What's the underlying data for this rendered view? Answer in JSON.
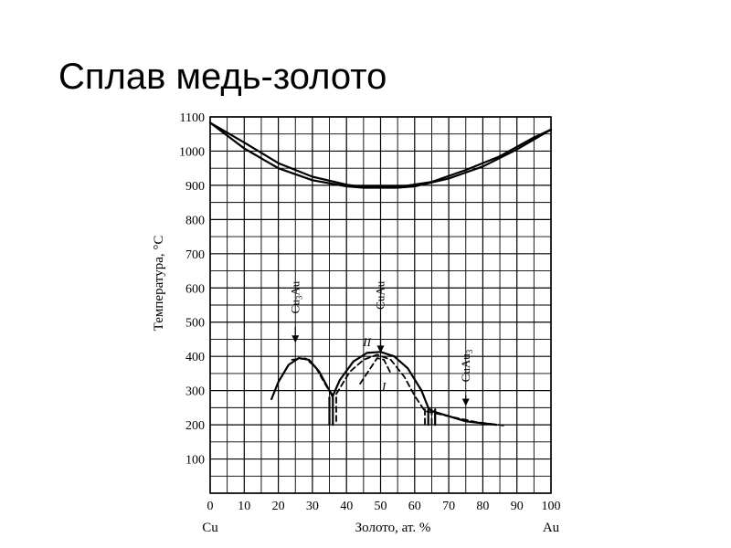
{
  "slide": {
    "title": "Сплав медь-золото"
  },
  "chart_data": {
    "type": "line",
    "title": "Сплав медь-золото",
    "xlabel": "Золото, ат. %",
    "ylabel": "Температура, °C",
    "xlim": [
      0,
      100
    ],
    "ylim": [
      0,
      1100
    ],
    "grid": true,
    "x_ticks": [
      0,
      10,
      20,
      30,
      40,
      50,
      60,
      70,
      80,
      90,
      100
    ],
    "y_ticks": [
      100,
      200,
      300,
      400,
      500,
      600,
      700,
      800,
      900,
      1000,
      1100
    ],
    "x_end_labels": {
      "left": "Cu",
      "right": "Au"
    },
    "series": [
      {
        "style": "solid",
        "points": [
          [
            0,
            1083
          ],
          [
            10,
            1025
          ],
          [
            20,
            965
          ],
          [
            30,
            925
          ],
          [
            40,
            902
          ],
          [
            43,
            898
          ],
          [
            50,
            898
          ],
          [
            57,
            898
          ],
          [
            65,
            910
          ],
          [
            75,
            945
          ],
          [
            85,
            985
          ],
          [
            95,
            1040
          ],
          [
            100,
            1063
          ]
        ]
      },
      {
        "style": "solid",
        "points": [
          [
            0,
            1083
          ],
          [
            10,
            1008
          ],
          [
            20,
            950
          ],
          [
            30,
            915
          ],
          [
            40,
            897
          ],
          [
            45,
            893
          ],
          [
            50,
            893
          ],
          [
            55,
            893
          ],
          [
            60,
            897
          ],
          [
            70,
            920
          ],
          [
            80,
            955
          ],
          [
            90,
            1005
          ],
          [
            100,
            1063
          ]
        ]
      },
      {
        "style": "solid",
        "points": [
          [
            18,
            275
          ],
          [
            20,
            325
          ],
          [
            23,
            375
          ],
          [
            26,
            395
          ],
          [
            29,
            390
          ],
          [
            32,
            355
          ],
          [
            35,
            300
          ],
          [
            36,
            285
          ]
        ]
      },
      {
        "style": "solid",
        "points": [
          [
            36,
            285
          ],
          [
            38,
            330
          ],
          [
            42,
            385
          ],
          [
            46,
            410
          ],
          [
            50,
            413
          ],
          [
            54,
            400
          ],
          [
            58,
            365
          ],
          [
            62,
            300
          ],
          [
            64,
            250
          ],
          [
            65,
            240
          ],
          [
            75,
            210
          ],
          [
            84,
            200
          ]
        ]
      },
      {
        "style": "dashed",
        "points": [
          [
            24,
            390
          ],
          [
            28,
            394
          ],
          [
            31,
            368
          ],
          [
            33,
            332
          ],
          [
            36,
            280
          ]
        ]
      },
      {
        "style": "dashed",
        "points": [
          [
            37,
            290
          ],
          [
            41,
            355
          ],
          [
            45,
            390
          ],
          [
            49,
            405
          ],
          [
            53,
            390
          ],
          [
            57,
            340
          ],
          [
            60,
            285
          ],
          [
            63,
            240
          ],
          [
            70,
            225
          ],
          [
            78,
            208
          ],
          [
            86,
            198
          ]
        ]
      },
      {
        "style": "dashed",
        "points": [
          [
            44,
            320
          ],
          [
            47,
            365
          ],
          [
            49,
            395
          ],
          [
            51,
            390
          ],
          [
            53,
            350
          ]
        ]
      },
      {
        "style": "solid",
        "points": [
          [
            35,
            280
          ],
          [
            35,
            200
          ]
        ]
      },
      {
        "style": "dashed",
        "points": [
          [
            37,
            280
          ],
          [
            37,
            200
          ]
        ]
      },
      {
        "style": "solid",
        "points": [
          [
            36,
            280
          ],
          [
            36,
            200
          ]
        ]
      },
      {
        "style": "dashed",
        "points": [
          [
            63,
            245
          ],
          [
            63,
            200
          ]
        ]
      },
      {
        "style": "solid",
        "points": [
          [
            64,
            245
          ],
          [
            64,
            200
          ]
        ]
      },
      {
        "style": "dashed",
        "points": [
          [
            65,
            245
          ],
          [
            65,
            200
          ]
        ]
      },
      {
        "style": "solid",
        "points": [
          [
            66,
            245
          ],
          [
            66,
            200
          ]
        ]
      }
    ],
    "annotations": [
      {
        "label_parts": [
          "Cu",
          "3",
          "Au"
        ],
        "x": 25,
        "y_top": 620,
        "y_arrow": 440
      },
      {
        "label_parts": [
          "CuAu"
        ],
        "x": 50,
        "y_top": 620,
        "y_arrow": 410
      },
      {
        "label_parts": [
          "CuAu",
          "3"
        ],
        "x": 75,
        "y_top": 420,
        "y_arrow": 255
      },
      {
        "label_parts": [
          "II"
        ],
        "x": 46,
        "y": 430
      },
      {
        "label_parts": [
          "I"
        ],
        "x": 51,
        "y": 300
      }
    ]
  }
}
